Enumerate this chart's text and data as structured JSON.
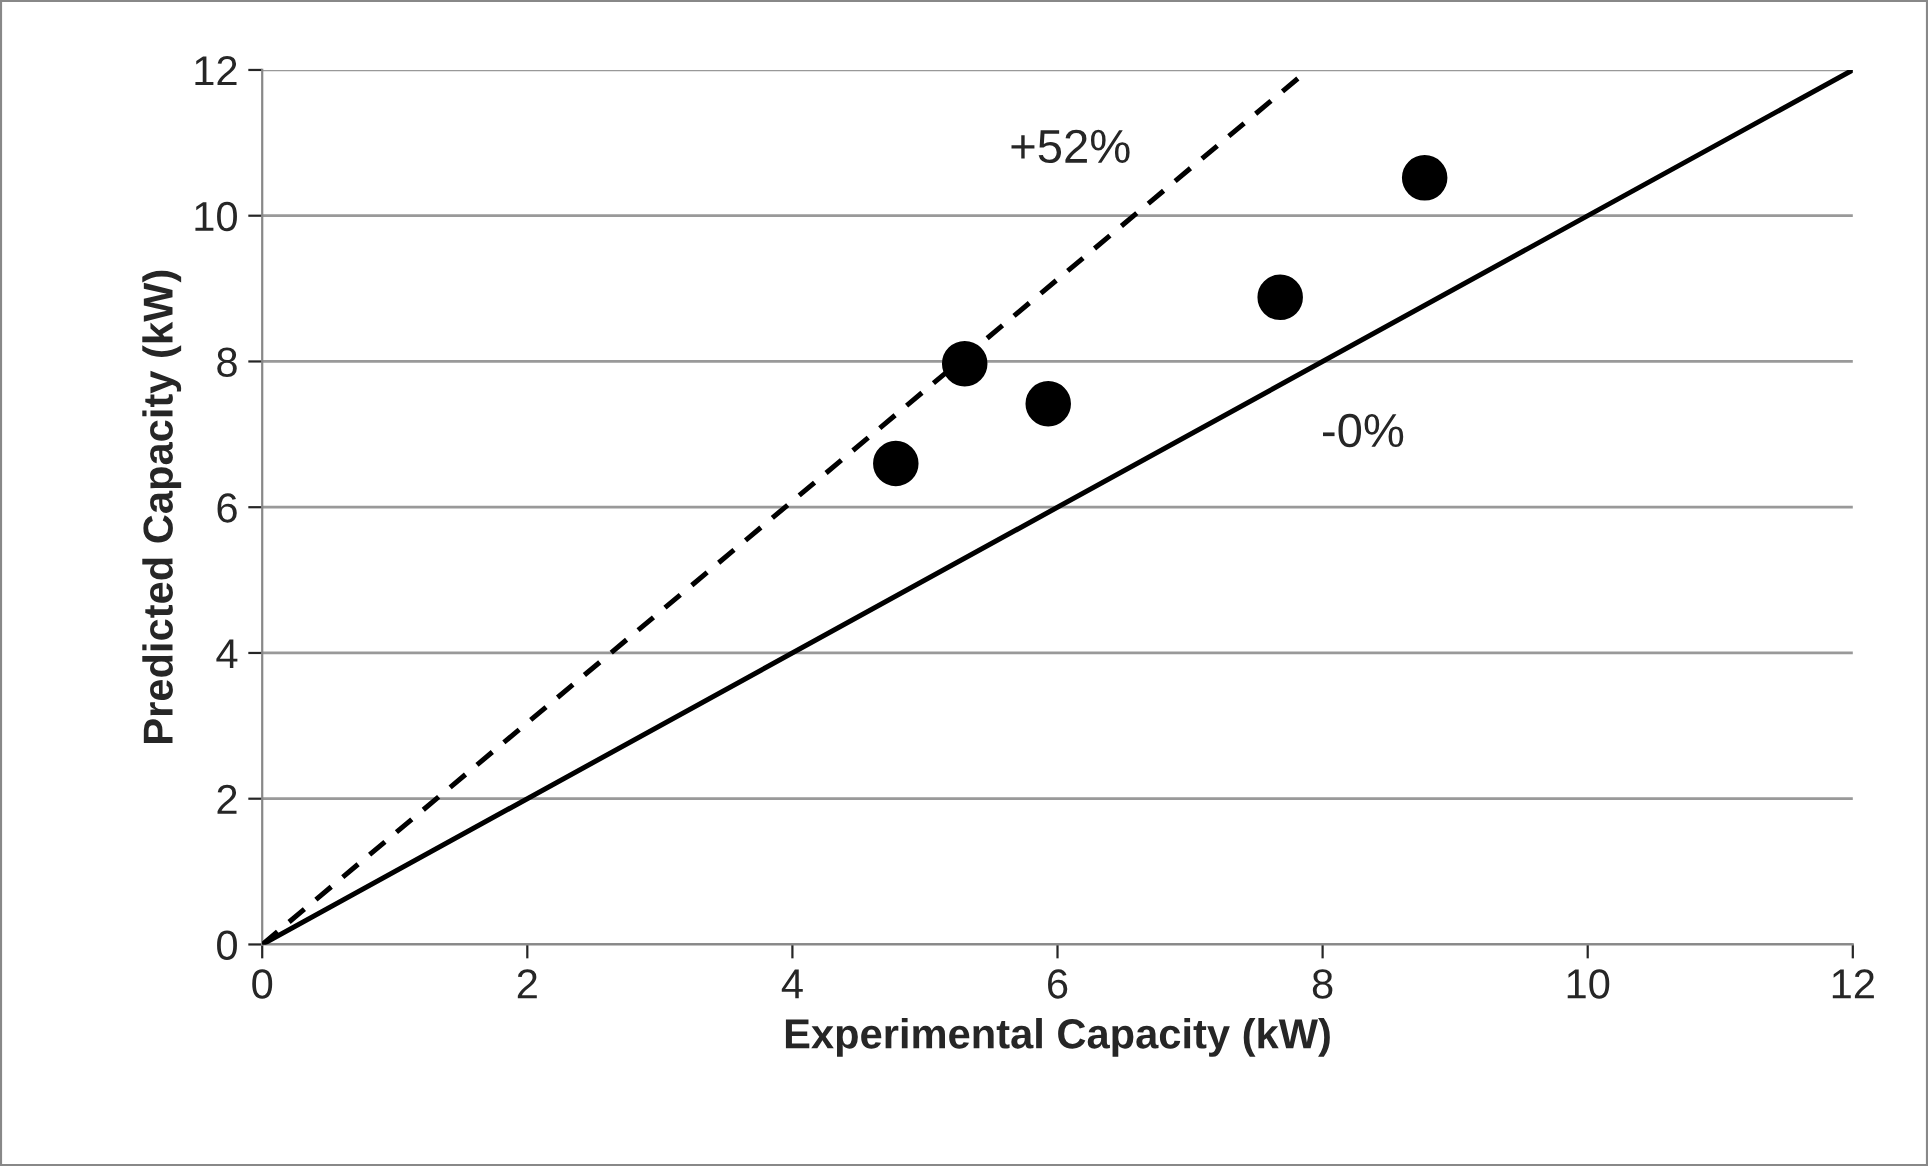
{
  "chart_data": {
    "type": "scatter",
    "xlabel": "Experimental Capacity (kW)",
    "ylabel": "Predicted Capacity (kW)",
    "xlim": [
      0,
      12
    ],
    "ylim": [
      0,
      12
    ],
    "xticks": [
      0,
      2,
      4,
      6,
      8,
      10,
      12
    ],
    "yticks": [
      0,
      2,
      4,
      6,
      8,
      10,
      12
    ],
    "grid": "y",
    "legend": false,
    "series": [
      {
        "color": "#000000",
        "marker": "circle",
        "x": [
          4.78,
          5.3,
          5.93,
          7.68,
          8.77
        ],
        "values": [
          6.6,
          7.97,
          7.42,
          8.88,
          10.52
        ]
      },
      {
        "type": "line",
        "color": "#000000",
        "marker": "none",
        "line_style": "dashed",
        "x": [
          0,
          7.89
        ],
        "values": [
          0,
          12
        ]
      },
      {
        "type": "line",
        "color": "#000000",
        "marker": "none",
        "line_style": "solid",
        "x": [
          0,
          12
        ],
        "values": [
          0,
          12
        ]
      }
    ],
    "annotations": [
      "+52%",
      "-0%"
    ]
  }
}
